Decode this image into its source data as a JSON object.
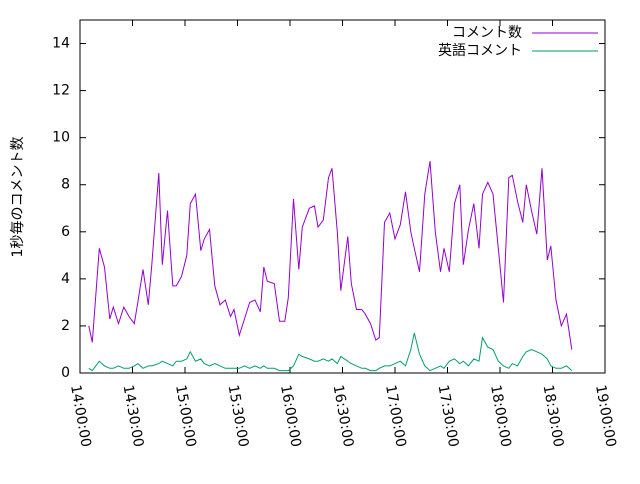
{
  "chart_data": {
    "type": "line",
    "y_label": "1秒毎のコメント数",
    "x": [
      "14:05:00",
      "14:07:00",
      "14:11:00",
      "14:14:00",
      "14:17:00",
      "14:19:00",
      "14:22:00",
      "14:25:00",
      "14:28:00",
      "14:31:00",
      "14:33:00",
      "14:36:00",
      "14:39:00",
      "14:41:00",
      "14:45:00",
      "14:47:00",
      "14:50:00",
      "14:53:00",
      "14:55:00",
      "14:58:00",
      "15:01:00",
      "15:03:00",
      "15:06:00",
      "15:09:00",
      "15:11:00",
      "15:14:00",
      "15:17:00",
      "15:20:00",
      "15:23:00",
      "15:26:00",
      "15:28:00",
      "15:31:00",
      "15:34:00",
      "15:37:00",
      "15:40:00",
      "15:43:00",
      "15:45:00",
      "15:47:00",
      "15:51:00",
      "15:54:00",
      "15:57:00",
      "15:59:00",
      "16:02:00",
      "16:05:00",
      "16:07:00",
      "16:11:00",
      "16:14:00",
      "16:16:00",
      "16:19:00",
      "16:22:00",
      "16:24:00",
      "16:27:00",
      "16:29:00",
      "16:33:00",
      "16:35:00",
      "16:38:00",
      "16:41:00",
      "16:43:00",
      "16:46:00",
      "16:49:00",
      "16:51:00",
      "16:54:00",
      "16:57:00",
      "17:00:00",
      "17:03:00",
      "17:06:00",
      "17:09:00",
      "17:11:00",
      "17:14:00",
      "17:17:00",
      "17:20:00",
      "17:23:00",
      "17:26:00",
      "17:28:00",
      "17:31:00",
      "17:34:00",
      "17:37:00",
      "17:39:00",
      "17:42:00",
      "17:45:00",
      "17:48:00",
      "17:50:00",
      "17:53:00",
      "17:56:00",
      "17:59:00",
      "18:02:00",
      "18:05:00",
      "18:07:00",
      "18:10:00",
      "18:13:00",
      "18:15:00",
      "18:18:00",
      "18:21:00",
      "18:24:00",
      "18:27:00",
      "18:29:00",
      "18:32:00",
      "18:35:00",
      "18:38:00",
      "18:41:00"
    ],
    "series": [
      {
        "name": "コメント数",
        "color": "#9400d3",
        "values": [
          2.0,
          1.3,
          5.3,
          4.5,
          2.3,
          2.8,
          2.1,
          2.8,
          2.4,
          2.1,
          3.0,
          4.4,
          2.9,
          4.6,
          8.5,
          4.6,
          6.9,
          3.7,
          3.7,
          4.1,
          5.0,
          7.2,
          7.6,
          5.2,
          5.7,
          6.1,
          3.7,
          2.9,
          3.1,
          2.4,
          2.7,
          1.6,
          2.3,
          3.0,
          3.1,
          2.6,
          4.5,
          3.9,
          3.8,
          2.2,
          2.2,
          3.2,
          7.4,
          4.4,
          6.2,
          7.0,
          7.1,
          6.2,
          6.5,
          8.3,
          8.7,
          6.0,
          3.5,
          5.8,
          3.8,
          2.7,
          2.7,
          2.5,
          2.1,
          1.4,
          1.5,
          6.4,
          6.8,
          5.7,
          6.3,
          7.7,
          6.0,
          5.3,
          4.3,
          7.6,
          9.0,
          6.0,
          4.3,
          5.3,
          4.3,
          7.2,
          8.0,
          4.6,
          6.1,
          7.2,
          5.3,
          7.6,
          8.1,
          7.6,
          5.3,
          3.0,
          8.3,
          8.4,
          7.3,
          6.4,
          8.0,
          6.9,
          5.9,
          8.7,
          4.8,
          5.4,
          3.1,
          2.0,
          2.5,
          1.0
        ]
      },
      {
        "name": "英語コメント",
        "color": "#009e73",
        "values": [
          0.2,
          0.1,
          0.5,
          0.3,
          0.2,
          0.2,
          0.3,
          0.2,
          0.2,
          0.3,
          0.4,
          0.2,
          0.3,
          0.3,
          0.4,
          0.5,
          0.4,
          0.3,
          0.5,
          0.5,
          0.6,
          0.9,
          0.5,
          0.6,
          0.4,
          0.3,
          0.4,
          0.3,
          0.2,
          0.2,
          0.2,
          0.2,
          0.3,
          0.2,
          0.3,
          0.2,
          0.3,
          0.2,
          0.2,
          0.1,
          0.1,
          0.1,
          0.3,
          0.8,
          0.7,
          0.6,
          0.5,
          0.5,
          0.6,
          0.5,
          0.6,
          0.4,
          0.7,
          0.5,
          0.4,
          0.3,
          0.2,
          0.2,
          0.1,
          0.1,
          0.2,
          0.3,
          0.3,
          0.4,
          0.5,
          0.3,
          1.0,
          1.7,
          0.8,
          0.3,
          0.1,
          0.2,
          0.3,
          0.2,
          0.5,
          0.6,
          0.4,
          0.5,
          0.3,
          0.6,
          0.5,
          1.5,
          1.1,
          1.0,
          0.5,
          0.3,
          0.2,
          0.4,
          0.3,
          0.7,
          0.9,
          1.0,
          0.9,
          0.8,
          0.6,
          0.3,
          0.2,
          0.2,
          0.3,
          0.1
        ]
      }
    ],
    "xlim": [
      "14:00:00",
      "19:00:00"
    ],
    "xticks": [
      "14:00:00",
      "14:30:00",
      "15:00:00",
      "15:30:00",
      "16:00:00",
      "16:30:00",
      "17:00:00",
      "17:30:00",
      "18:00:00",
      "18:30:00",
      "19:00:00"
    ],
    "ylim": [
      0,
      15
    ],
    "yticks": [
      0,
      2,
      4,
      6,
      8,
      10,
      12,
      14
    ],
    "grid": false,
    "legend": "top-right"
  }
}
